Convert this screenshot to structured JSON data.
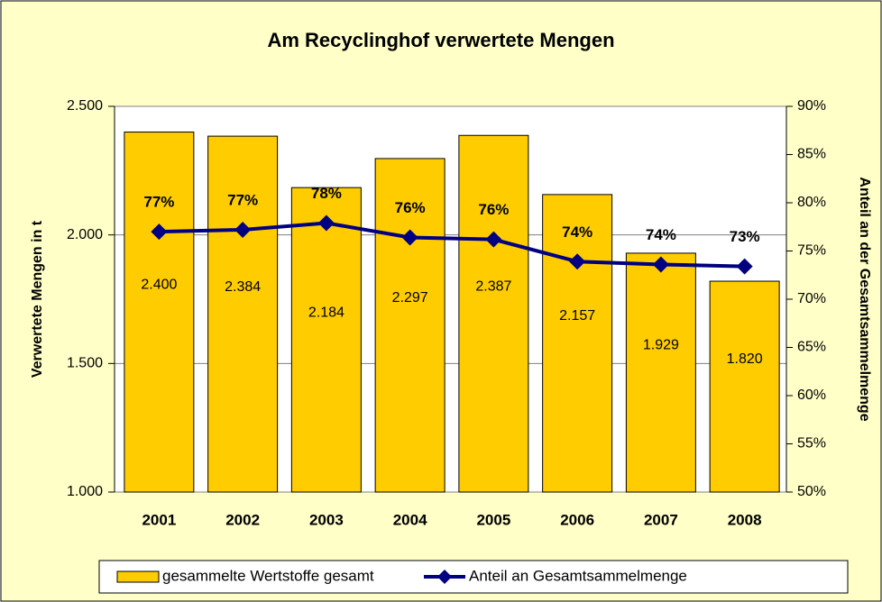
{
  "chart_data": {
    "type": "bar",
    "title": "Am Recyclinghof verwertete Mengen",
    "ylabel": "Verwertete Mengen in t",
    "y2label": "Anteil an der Gesamtsammelmenge",
    "categories": [
      "2001",
      "2002",
      "2003",
      "2004",
      "2005",
      "2006",
      "2007",
      "2008"
    ],
    "series": [
      {
        "name": "gesammelte Wertstoffe gesamt",
        "type": "bar",
        "axis": "y",
        "color": "#FFCC00",
        "values": [
          2400,
          2384,
          2184,
          2297,
          2387,
          2157,
          1929,
          1820
        ],
        "value_labels": [
          "2.400",
          "2.384",
          "2.184",
          "2.297",
          "2.387",
          "2.157",
          "1.929",
          "1.820"
        ]
      },
      {
        "name": "Anteil an Gesamtsammelmenge",
        "type": "line",
        "axis": "y2",
        "color": "#000080",
        "values": [
          77.0,
          77.2,
          77.9,
          76.4,
          76.2,
          73.9,
          73.6,
          73.4
        ],
        "value_labels": [
          "77%",
          "77%",
          "78%",
          "76%",
          "76%",
          "74%",
          "74%",
          "73%"
        ]
      }
    ],
    "ylim": [
      1000,
      2500
    ],
    "yticks": [
      {
        "value": 1000,
        "label": "1.000"
      },
      {
        "value": 1500,
        "label": "1.500"
      },
      {
        "value": 2000,
        "label": "2.000"
      },
      {
        "value": 2500,
        "label": "2.500"
      }
    ],
    "y2lim": [
      50,
      90
    ],
    "y2ticks": [
      {
        "value": 50,
        "label": "50%"
      },
      {
        "value": 55,
        "label": "55%"
      },
      {
        "value": 60,
        "label": "60%"
      },
      {
        "value": 65,
        "label": "65%"
      },
      {
        "value": 70,
        "label": "70%"
      },
      {
        "value": 75,
        "label": "75%"
      },
      {
        "value": 80,
        "label": "80%"
      },
      {
        "value": 85,
        "label": "85%"
      },
      {
        "value": 90,
        "label": "90%"
      }
    ],
    "grid": true,
    "legend": "bottom"
  }
}
